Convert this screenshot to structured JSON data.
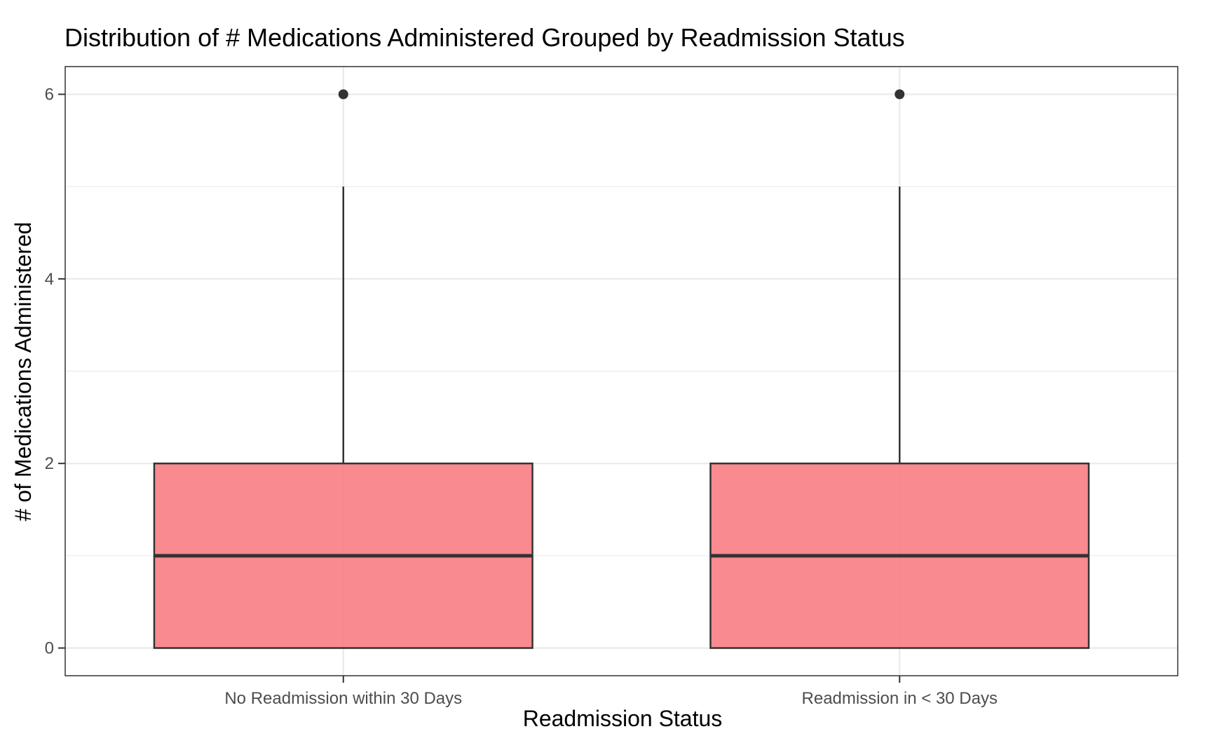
{
  "chart_data": {
    "type": "boxplot",
    "title": "Distribution of # Medications Administered Grouped by Readmission Status",
    "xlabel": "Readmission Status",
    "ylabel": "# of Medications Administered",
    "categories": [
      "No Readmission within 30 Days",
      "Readmission in < 30 Days"
    ],
    "boxes": [
      {
        "category": "No Readmission within 30 Days",
        "min": 0,
        "q1": 0,
        "median": 1,
        "q3": 2,
        "whisker_high": 5,
        "outliers": [
          6
        ]
      },
      {
        "category": "Readmission in < 30 Days",
        "min": 0,
        "q1": 0,
        "median": 1,
        "q3": 2,
        "whisker_high": 5,
        "outliers": [
          6
        ]
      }
    ],
    "ylim": [
      -0.3,
      6.3
    ],
    "yticks": [
      0,
      2,
      4,
      6
    ],
    "ytick_labels": [
      "0",
      "2",
      "4",
      "6"
    ],
    "grid": true,
    "colors": {
      "box_fill": "#f8767d",
      "box_line": "#333333",
      "grid": "#ebebeb",
      "panel_border": "#333333"
    }
  }
}
